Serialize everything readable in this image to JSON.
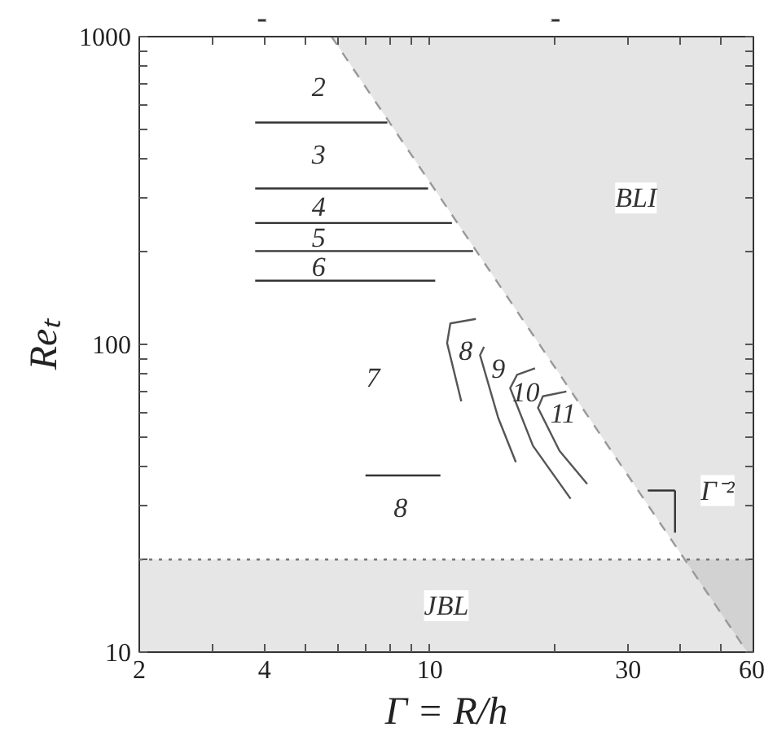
{
  "chart_data": {
    "type": "line",
    "xlabel": "Γ = R/h",
    "ylabel": "Reₜ",
    "log": "xy",
    "grid": false,
    "marker": "none",
    "xlim": [
      2,
      60
    ],
    "ylim": [
      10,
      1000
    ],
    "xticks": [
      2,
      {
        "value": 3,
        "label": null
      },
      4,
      {
        "value": 5,
        "label": null
      },
      {
        "value": 6,
        "label": null
      },
      {
        "value": 7,
        "label": null
      },
      {
        "value": 8,
        "label": null
      },
      {
        "value": 9,
        "label": null
      },
      10,
      {
        "value": 20,
        "label": null
      },
      30,
      {
        "value": 40,
        "label": null
      },
      {
        "value": 50,
        "label": null
      },
      60
    ],
    "yticks": [
      10,
      {
        "value": 20,
        "label": null
      },
      {
        "value": 30,
        "label": null
      },
      {
        "value": 40,
        "label": null
      },
      {
        "value": 50,
        "label": null
      },
      {
        "value": 60,
        "label": null
      },
      {
        "value": 70,
        "label": null
      },
      {
        "value": 80,
        "label": null
      },
      {
        "value": 90,
        "label": null
      },
      100,
      {
        "value": 200,
        "label": null
      },
      {
        "value": 300,
        "label": null
      },
      {
        "value": 400,
        "label": null
      },
      {
        "value": 500,
        "label": null
      },
      {
        "value": 600,
        "label": null
      },
      {
        "value": 700,
        "label": null
      },
      {
        "value": 800,
        "label": null
      },
      {
        "value": 900,
        "label": null
      },
      1000
    ],
    "series": [
      {
        "color": "#999999",
        "line_style": "dashed",
        "x": [
          5.8,
          58,
          60
        ],
        "values": [
          1000,
          10,
          10
        ],
        "lower": [
          1000,
          10,
          10
        ],
        "upper": [
          1000,
          1000,
          1000
        ]
      },
      {
        "color": "#333333",
        "x": [
          3.8,
          7.9
        ],
        "values": [
          526,
          526
        ]
      },
      {
        "color": "#333333",
        "x": [
          3.8,
          9.9
        ],
        "values": [
          321,
          321
        ]
      },
      {
        "color": "#333333",
        "x": [
          3.8,
          11.3
        ],
        "values": [
          248,
          248
        ]
      },
      {
        "color": "#333333",
        "x": [
          3.8,
          12.7
        ],
        "values": [
          201,
          201
        ]
      },
      {
        "color": "#333333",
        "x": [
          3.8,
          10.3
        ],
        "values": [
          161,
          161
        ]
      },
      {
        "color": "#333333",
        "x": [
          7.0,
          10.6
        ],
        "values": [
          37.5,
          37.5
        ]
      },
      {
        "color": "#555555",
        "x": [
          12.9,
          11.2,
          11.0,
          11.9
        ],
        "values": [
          121,
          117,
          101,
          65.3
        ]
      },
      {
        "color": "#555555",
        "x": [
          13.5,
          13.2,
          14.6,
          16.1
        ],
        "values": [
          98.2,
          92.3,
          57.7,
          41.4
        ]
      },
      {
        "color": "#555555",
        "x": [
          17.9,
          16.2,
          15.6,
          17.7,
          21.8
        ],
        "values": [
          83.6,
          79.6,
          72.1,
          46.8,
          31.5
        ]
      },
      {
        "color": "#555555",
        "x": [
          21.3,
          18.7,
          18.2,
          20.5,
          23.9
        ],
        "values": [
          70.3,
          67.8,
          62.2,
          45.1,
          35.2
        ]
      }
    ],
    "bands": [
      {
        "axis": "y",
        "from": 10,
        "to": 20,
        "label": "JBL",
        "color": "#e6e6e6"
      }
    ],
    "ref_lines": [
      {
        "axis": "y",
        "value": 20,
        "line_style": "dotted",
        "color": "#777777"
      }
    ],
    "annotations": [
      "2",
      "3",
      "4",
      "5",
      "6",
      "7",
      "8",
      "8",
      "9",
      "10",
      "11",
      "BLI",
      "Γ⁻²"
    ]
  }
}
